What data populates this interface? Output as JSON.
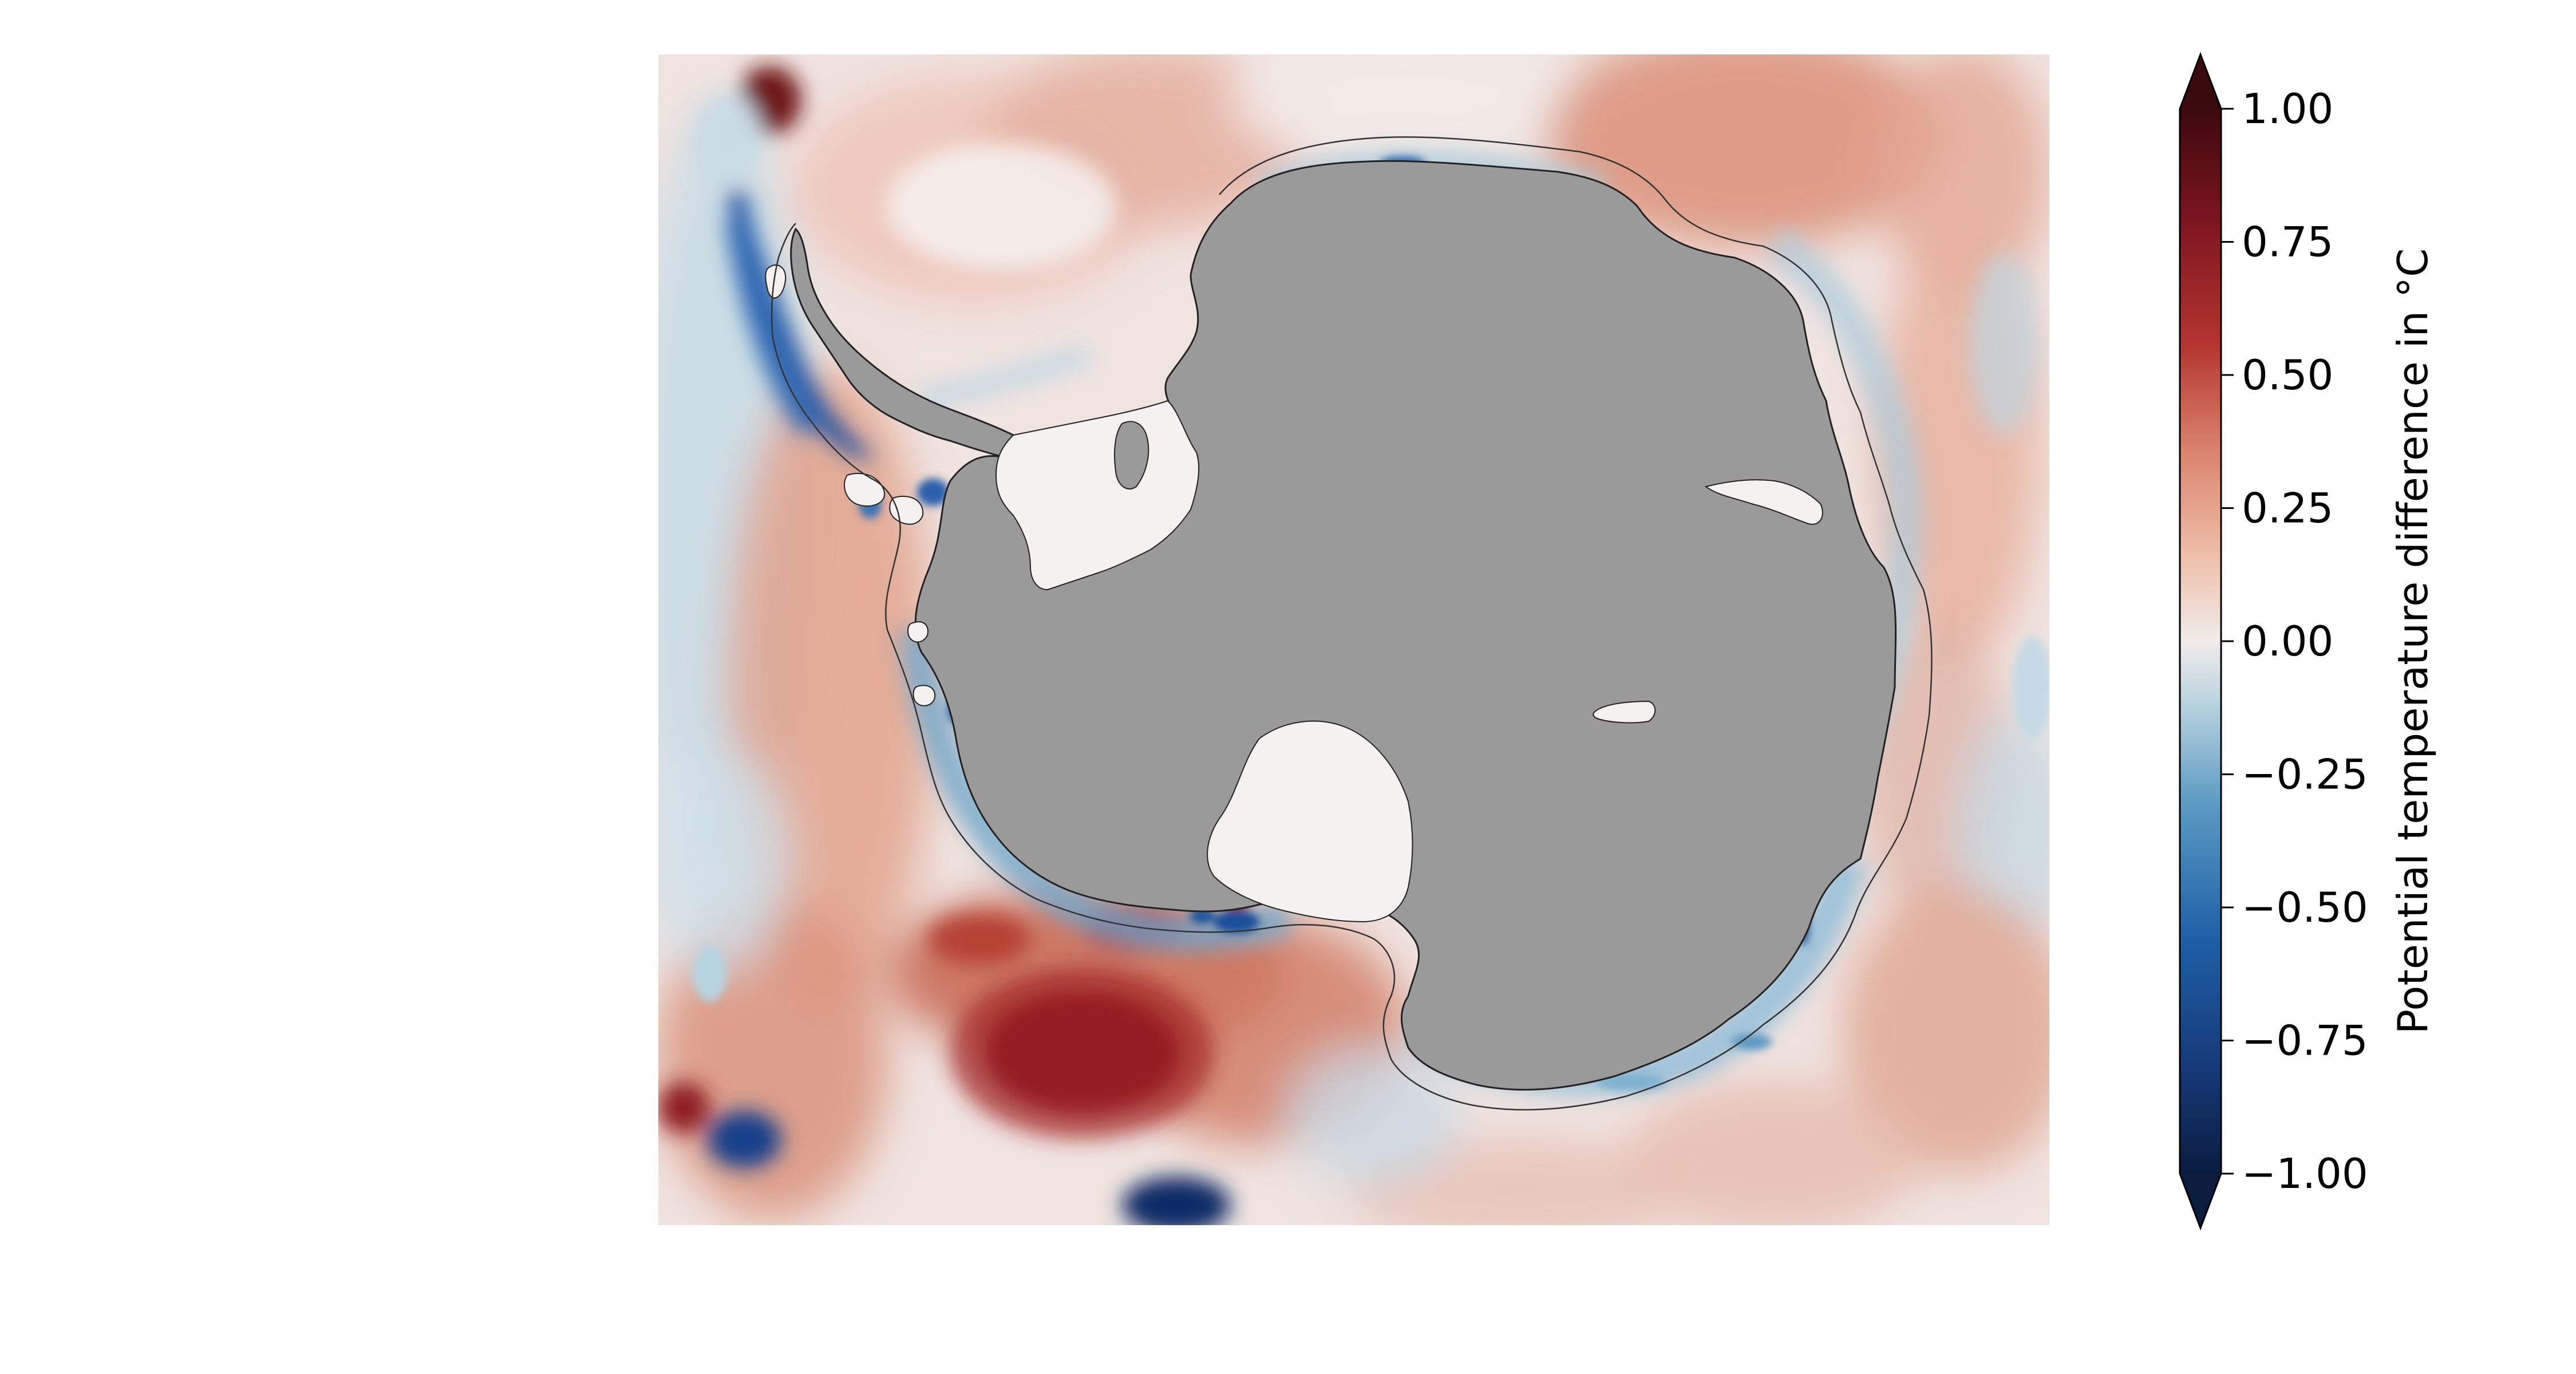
{
  "colorbar": {
    "label": "Potential temperature difference in °C",
    "range": [
      -1.0,
      1.0
    ],
    "ticks": [
      "1.00",
      "0.75",
      "0.50",
      "0.25",
      "0.00",
      "−0.25",
      "−0.50",
      "−0.75",
      "−1.00"
    ],
    "tick_values": [
      1.0,
      0.75,
      0.5,
      0.25,
      0.0,
      -0.25,
      -0.5,
      -0.75,
      -1.0
    ],
    "extend": "both",
    "colormap": [
      "#3b0a0c",
      "#7a1420",
      "#b3342f",
      "#d9836b",
      "#eebfaa",
      "#f1ecea",
      "#b8d3df",
      "#5e9cc3",
      "#1e5fa6",
      "#163a78",
      "#0b1c3f"
    ]
  },
  "map": {
    "projection": "south-polar-stereographic",
    "land_color": "#9a9a9a",
    "ice_shelf_color": "#f4f1f0",
    "coastline_color": "#222222"
  }
}
